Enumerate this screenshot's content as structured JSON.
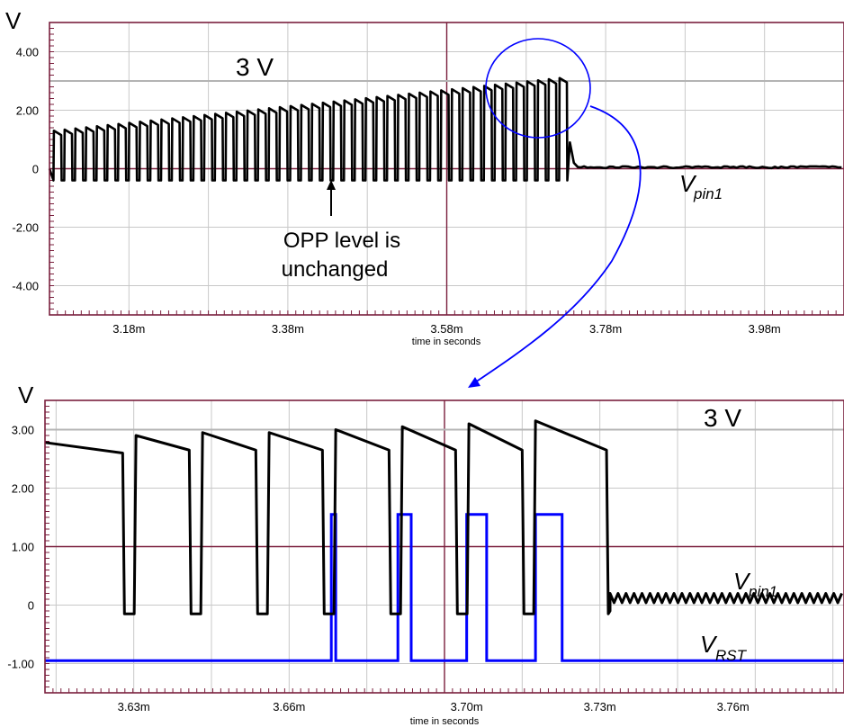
{
  "chart_data": [
    {
      "type": "line",
      "unit_label": "V",
      "xlabel": "time in seconds",
      "xlim": [
        3.08,
        4.08
      ],
      "ylim": [
        -5.0,
        5.0
      ],
      "x_ticks": [
        3.18,
        3.38,
        3.58,
        3.78,
        3.98
      ],
      "x_tick_labels": [
        "3.18m",
        "3.38m",
        "3.58m",
        "3.78m",
        "3.98m"
      ],
      "y_ticks": [
        4,
        2,
        0,
        -2,
        -4
      ],
      "y_tick_labels": [
        "4.00",
        "2.00",
        "0",
        "-2.00",
        "-4.00"
      ],
      "grid": true,
      "reference_line": {
        "y": 3.0,
        "label": "3 V"
      },
      "annotations": {
        "opp_line1": "OPP level is",
        "opp_line2": "unchanged",
        "signal_main": "V",
        "signal_sub": "pin1"
      },
      "series": [
        {
          "name": "Vpin1",
          "color": "#000000",
          "pulse_train": {
            "start_ms": 3.085,
            "stop_ms": 3.735,
            "count": 48,
            "peak_start_v": 1.3,
            "peak_end_v": 3.1,
            "low_v": -0.4,
            "baseline_after_v": 0.05
          }
        }
      ]
    },
    {
      "type": "line",
      "unit_label": "V",
      "xlabel": "time in seconds",
      "xlim": [
        3.605,
        3.785
      ],
      "ylim": [
        -1.5,
        3.5
      ],
      "x_ticks": [
        3.625,
        3.66,
        3.7,
        3.73,
        3.76
      ],
      "x_tick_labels": [
        "3.63m",
        "3.66m",
        "3.70m",
        "3.73m",
        "3.76m"
      ],
      "y_ticks": [
        3,
        2,
        1,
        0,
        -1
      ],
      "y_tick_labels": [
        "3.00",
        "2.00",
        "1.00",
        "0",
        "-1.00"
      ],
      "grid": true,
      "reference_line": {
        "y": 3.0,
        "label": "3 V"
      },
      "annotations": {
        "signal_main": "V",
        "signal_sub": "pin1",
        "signal2_main": "V",
        "signal2_sub": "RST"
      },
      "series": [
        {
          "name": "Vpin1",
          "color": "#000000",
          "pulses": [
            {
              "start": 3.605,
              "end": 3.6225,
              "v_start": 2.78,
              "v_end": 2.6
            },
            {
              "start": 3.6255,
              "end": 3.6375,
              "v_start": 2.9,
              "v_end": 2.65
            },
            {
              "start": 3.6405,
              "end": 3.6525,
              "v_start": 2.95,
              "v_end": 2.65
            },
            {
              "start": 3.6555,
              "end": 3.6675,
              "v_start": 2.95,
              "v_end": 2.65
            },
            {
              "start": 3.6705,
              "end": 3.6825,
              "v_start": 3.0,
              "v_end": 2.65
            },
            {
              "start": 3.6855,
              "end": 3.6975,
              "v_start": 3.05,
              "v_end": 2.65
            },
            {
              "start": 3.7005,
              "end": 3.7125,
              "v_start": 3.1,
              "v_end": 2.65
            },
            {
              "start": 3.7155,
              "end": 3.7315,
              "v_start": 3.15,
              "v_end": 2.65
            }
          ],
          "low_v": -0.15,
          "tail_ringing_v": 0.1
        },
        {
          "name": "VRST",
          "color": "#0000ff",
          "baseline_v": -0.95,
          "pulses": [
            {
              "start": 3.6695,
              "end": 3.6705,
              "v": 1.55
            },
            {
              "start": 3.6845,
              "end": 3.6875,
              "v": 1.55
            },
            {
              "start": 3.7,
              "end": 3.7045,
              "v": 1.55
            },
            {
              "start": 3.7155,
              "end": 3.7215,
              "v": 1.55
            }
          ]
        }
      ]
    }
  ]
}
